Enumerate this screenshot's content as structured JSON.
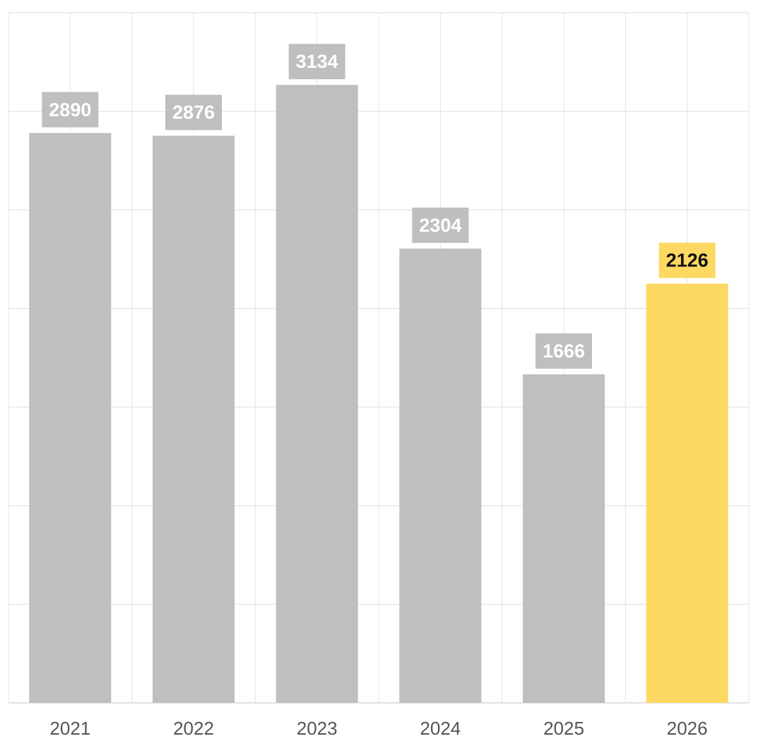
{
  "chart_data": {
    "type": "bar",
    "title": "",
    "xlabel": "",
    "ylabel": "",
    "categories": [
      "2021",
      "2022",
      "2023",
      "2024",
      "2025",
      "2026"
    ],
    "values": [
      2890,
      2876,
      3134,
      2304,
      1666,
      2126
    ],
    "ylim": [
      0,
      3500
    ],
    "grid": true,
    "highlight_category": "2026",
    "colors": {
      "bar": "#bfbfbf",
      "bar_highlight": "#fdd963",
      "label_bg": "#bfbfbf",
      "label_text": "#ffffff",
      "label_bg_highlight": "#fdd963",
      "label_text_highlight": "#111111",
      "grid": "#e4e4e4",
      "tick_text": "#555555"
    }
  }
}
